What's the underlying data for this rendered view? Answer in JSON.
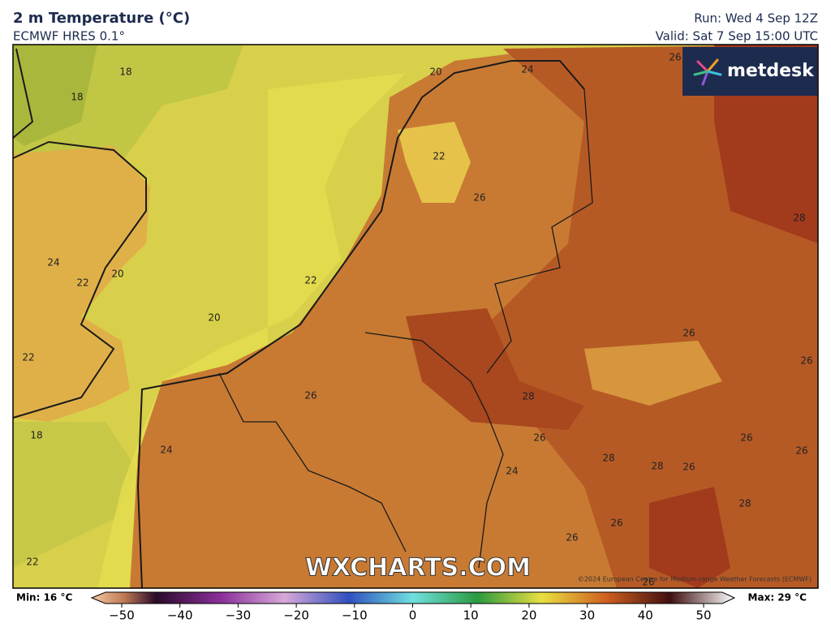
{
  "header": {
    "title": "2 m Temperature (°C)",
    "subtitle": "ECMWF HRES 0.1°",
    "run": "Run: Wed 4 Sep 12Z",
    "valid": "Valid: Sat 7 Sep 15:00 UTC"
  },
  "logo": "metdesk",
  "watermark": "WXCHARTS.COM",
  "copyright": "©2024 European Centre for Medium-range Weather Forecasts (ECMWF)",
  "contour_labels": [
    18,
    18,
    24,
    22,
    20,
    20,
    22,
    18,
    24,
    22,
    22,
    26,
    22,
    26,
    20,
    24,
    26,
    28,
    26,
    26,
    28,
    26,
    24,
    28,
    28,
    26,
    26,
    26,
    28,
    26,
    26,
    26
  ],
  "colorbar": {
    "min": "Min: 16 °C",
    "max": "Max: 29 °C",
    "ticks": [
      {
        "value": -50,
        "label": "−50"
      },
      {
        "value": -40,
        "label": "−40"
      },
      {
        "value": -30,
        "label": "−30"
      },
      {
        "value": -20,
        "label": "−20"
      },
      {
        "value": -10,
        "label": "−10"
      },
      0,
      10,
      20,
      30,
      40,
      50
    ]
  }
}
